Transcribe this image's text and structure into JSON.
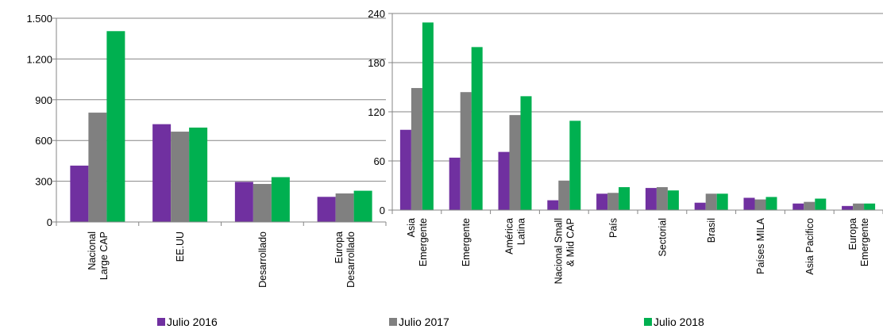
{
  "chart_data": [
    {
      "type": "bar",
      "categories": [
        [
          "Nacional",
          "Large CAP"
        ],
        [
          "EE.UU"
        ],
        [
          "Desarrollado"
        ],
        [
          "Europa",
          "Desarrollado"
        ]
      ],
      "series": [
        {
          "name": "Julio 2016",
          "values": [
            415,
            720,
            295,
            185
          ]
        },
        {
          "name": "Julio 2017",
          "values": [
            805,
            665,
            280,
            210
          ]
        },
        {
          "name": "Julio 2018",
          "values": [
            1405,
            695,
            330,
            230
          ]
        }
      ],
      "ylim": [
        0,
        1500
      ],
      "yticks": [
        0,
        300,
        600,
        900,
        1200,
        1500
      ],
      "ytick_labels": [
        "0",
        "300",
        "600",
        "900",
        "1.200",
        "1.500"
      ],
      "grid": true
    },
    {
      "type": "bar",
      "categories": [
        [
          "Asia",
          "Emergente"
        ],
        [
          "Emergente"
        ],
        [
          "América",
          "Latina"
        ],
        [
          "Nacional Small",
          "& Mid CAP"
        ],
        [
          "País"
        ],
        [
          "Sectorial"
        ],
        [
          "Brasil"
        ],
        [
          "Países MILA"
        ],
        [
          "Asia Pacifico"
        ],
        [
          "Europa",
          "Emergente"
        ]
      ],
      "series": [
        {
          "name": "Julio 2016",
          "values": [
            98,
            64,
            71,
            12,
            20,
            27,
            9,
            15,
            8,
            5
          ]
        },
        {
          "name": "Julio 2017",
          "values": [
            149,
            144,
            116,
            36,
            21,
            28,
            20,
            13,
            10,
            8
          ]
        },
        {
          "name": "Julio 2018",
          "values": [
            229,
            199,
            139,
            109,
            28,
            24,
            20,
            16,
            14,
            8
          ]
        }
      ],
      "ylim": [
        0,
        240
      ],
      "yticks": [
        0,
        60,
        120,
        180,
        240
      ],
      "ytick_labels": [
        "0",
        "60",
        "120",
        "180",
        "240"
      ],
      "grid": true
    }
  ],
  "legend": {
    "placement": "bottom",
    "items": [
      {
        "label": "Julio 2016",
        "color": "#7030A0"
      },
      {
        "label": "Julio 2017",
        "color": "#808080"
      },
      {
        "label": "Julio 2018",
        "color": "#00B050"
      }
    ]
  },
  "colors": {
    "grid": "#868686",
    "axis": "#868686"
  }
}
